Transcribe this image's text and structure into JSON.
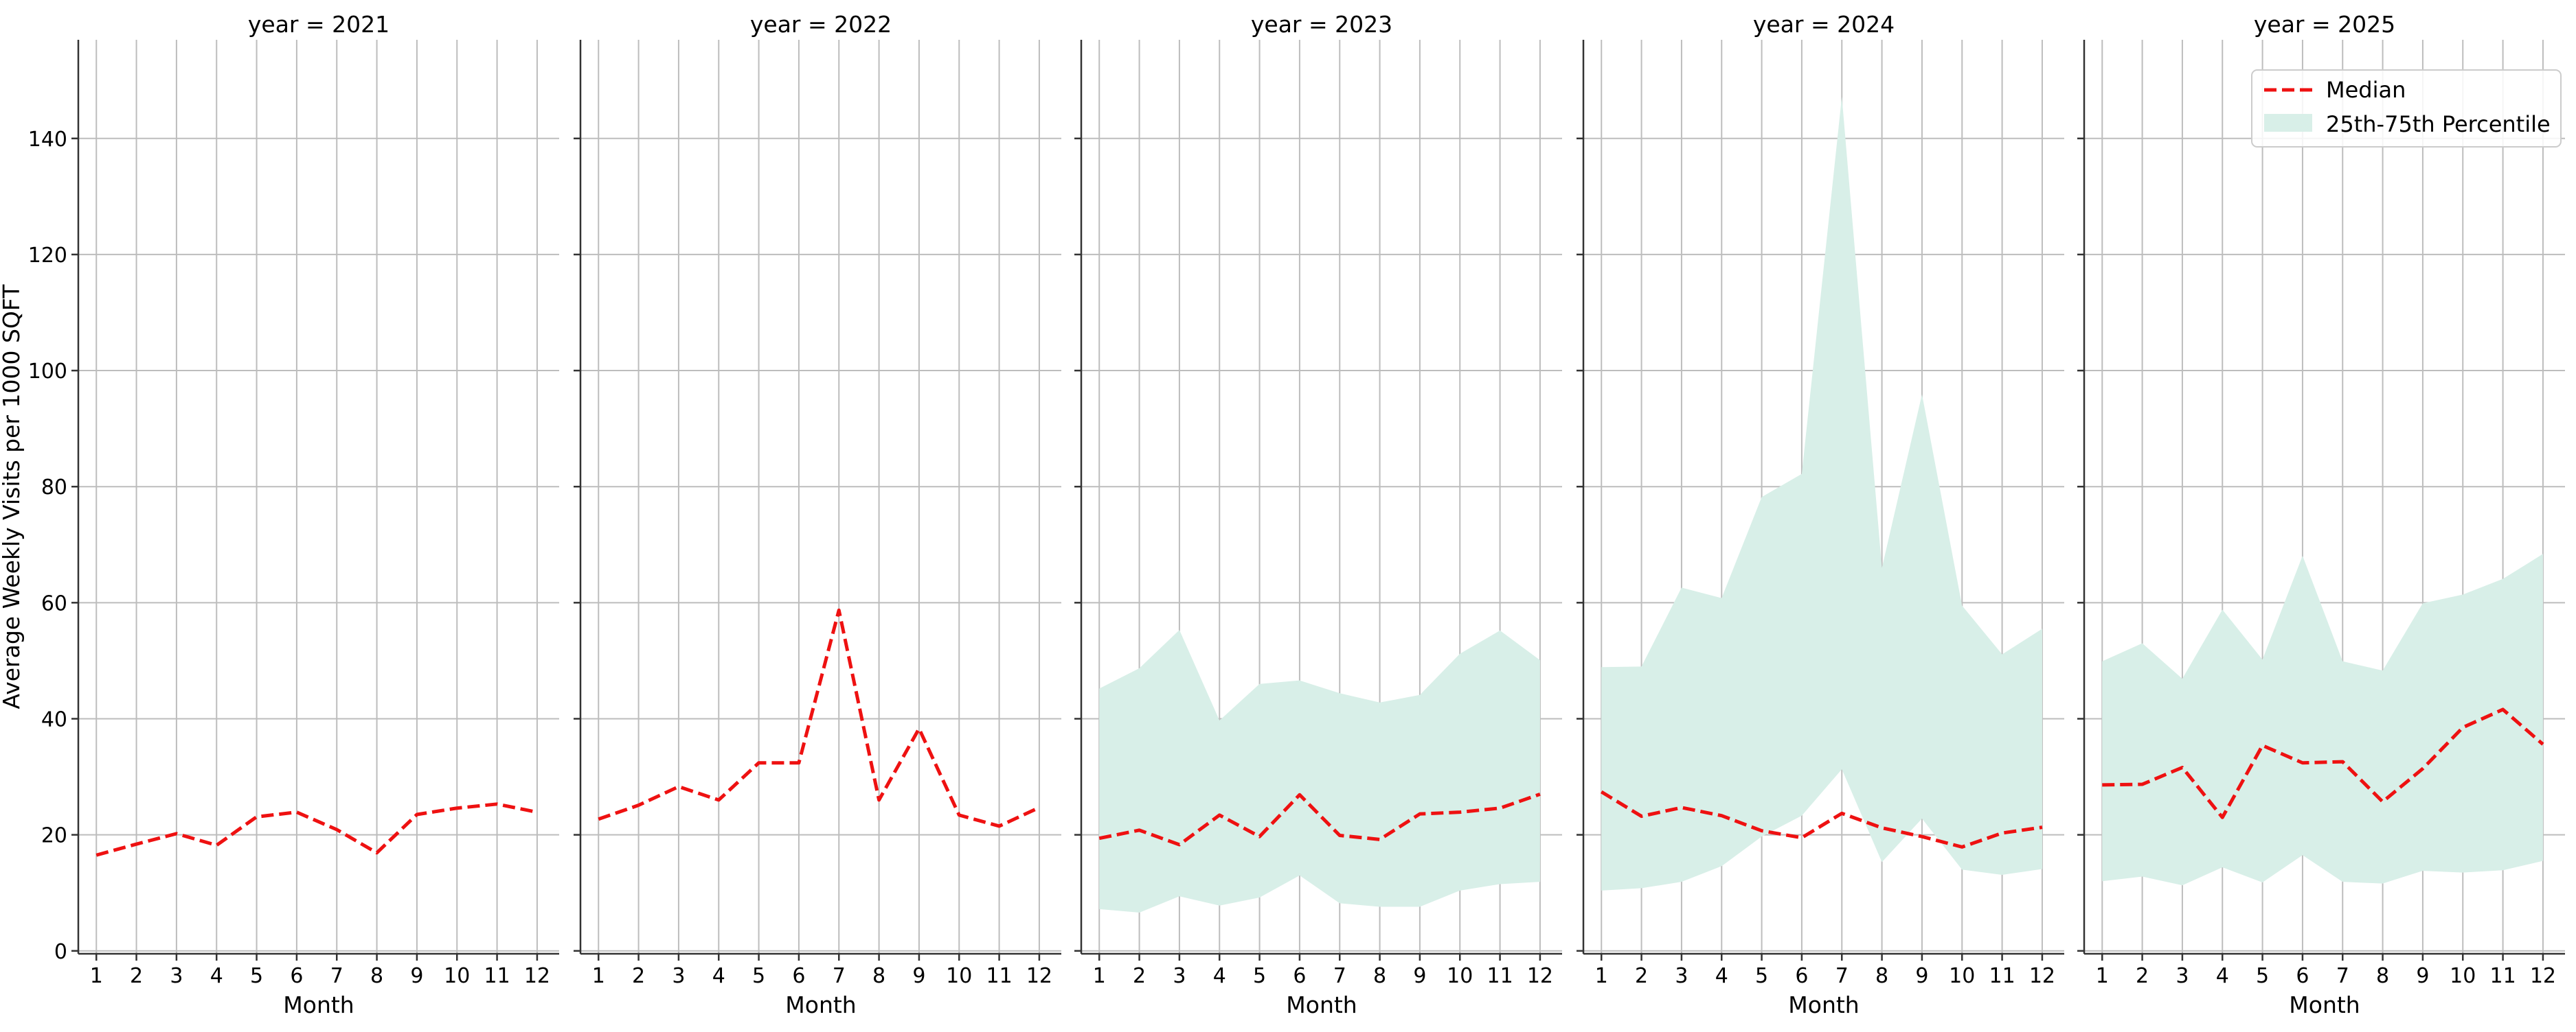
{
  "chart_data": {
    "type": "line",
    "layout": "facet-grid",
    "ylabel": "Average Weekly Visits per 1000 SQFT",
    "xlabel": "Month",
    "ylim": [
      -0.5,
      157
    ],
    "xlim": [
      0.55,
      12.55
    ],
    "yticks": [
      0,
      20,
      40,
      60,
      80,
      100,
      120,
      140
    ],
    "xticks": [
      1,
      2,
      3,
      4,
      5,
      6,
      7,
      8,
      9,
      10,
      11,
      12
    ],
    "grid": true,
    "legend": {
      "placement": "top-right",
      "entries": [
        {
          "label": "Median",
          "kind": "line",
          "color": "#ee1111",
          "style": "dashed"
        },
        {
          "label": "25th-75th Percentile",
          "kind": "band",
          "color": "#d8efe8"
        }
      ]
    },
    "colors": {
      "median": "#ee1111",
      "band": "#d8efe8",
      "grid": "#bdbdbd"
    },
    "panels": [
      {
        "title": "year = 2021",
        "median": [
          16.5,
          18.4,
          20.2,
          18.2,
          23.1,
          23.9,
          20.9,
          16.9,
          23.5,
          24.6,
          25.3,
          23.9
        ],
        "p25": null,
        "p75": null
      },
      {
        "title": "year = 2022",
        "median": [
          22.7,
          25.1,
          28.3,
          26.0,
          32.4,
          32.4,
          58.7,
          26.0,
          38.3,
          23.4,
          21.5,
          24.7
        ],
        "p25": null,
        "p75": null
      },
      {
        "title": "year = 2023",
        "median": [
          19.4,
          20.8,
          18.3,
          23.4,
          19.7,
          26.9,
          19.9,
          19.2,
          23.6,
          23.9,
          24.6,
          27.0
        ],
        "p25": [
          7.2,
          6.6,
          9.4,
          7.8,
          9.2,
          13.0,
          8.2,
          7.6,
          7.6,
          10.4,
          11.5,
          11.9
        ],
        "p75": [
          45.2,
          48.7,
          55.3,
          39.7,
          46.0,
          46.6,
          44.4,
          42.8,
          44.1,
          51.2,
          55.2,
          50.1
        ]
      },
      {
        "title": "year = 2024",
        "median": [
          27.4,
          23.2,
          24.7,
          23.3,
          20.7,
          19.5,
          23.7,
          21.2,
          19.7,
          17.9,
          20.3,
          21.3
        ],
        "p25": [
          10.4,
          10.8,
          11.9,
          14.6,
          19.7,
          23.3,
          31.3,
          15.3,
          22.8,
          14.0,
          13.1,
          14.1
        ],
        "p75": [
          48.9,
          49.0,
          62.6,
          60.8,
          78.2,
          82.2,
          147.2,
          66.0,
          95.9,
          59.5,
          51.1,
          55.5
        ]
      },
      {
        "title": "year = 2025",
        "median": [
          28.6,
          28.7,
          31.6,
          23.0,
          35.4,
          32.4,
          32.6,
          25.7,
          31.4,
          38.5,
          41.6,
          35.6
        ],
        "p25": [
          12.0,
          12.8,
          11.3,
          14.4,
          11.8,
          16.5,
          11.9,
          11.6,
          13.8,
          13.5,
          13.9,
          15.5
        ],
        "p75": [
          49.9,
          53.0,
          46.9,
          58.8,
          50.2,
          68.1,
          49.9,
          48.3,
          59.9,
          61.4,
          64.1,
          68.4
        ]
      }
    ]
  }
}
